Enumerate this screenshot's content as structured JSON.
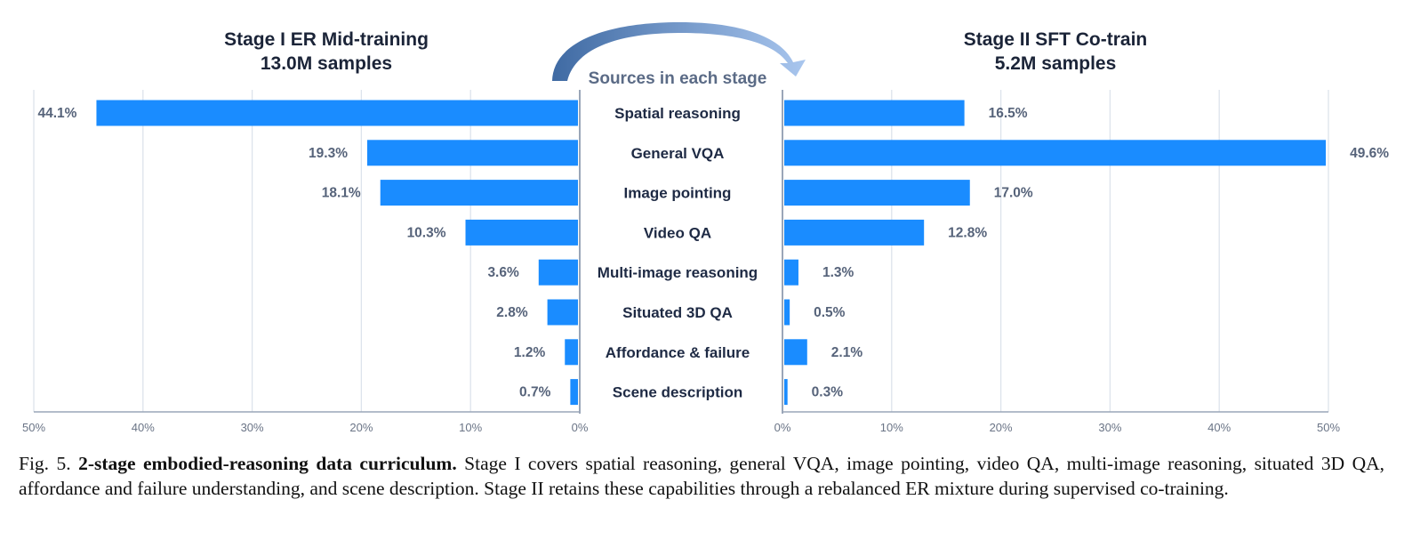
{
  "chart_data": {
    "type": "bar",
    "orientation": "horizontal",
    "center_header": "Sources in each stage",
    "categories": [
      "Spatial reasoning",
      "General VQA",
      "Image pointing",
      "Video QA",
      "Multi-image reasoning",
      "Situated 3D QA",
      "Affordance & failure",
      "Scene description"
    ],
    "panels": [
      {
        "title_line1": "Stage I ER Mid-training",
        "title_line2": "13.0M samples",
        "direction": "left",
        "xlim": [
          0,
          50
        ],
        "xticks": [
          "50%",
          "40%",
          "30%",
          "20%",
          "10%",
          "0%"
        ],
        "values": [
          44.1,
          19.3,
          18.1,
          10.3,
          3.6,
          2.8,
          1.2,
          0.7
        ],
        "labels": [
          "44.1%",
          "19.3%",
          "18.1%",
          "10.3%",
          "3.6%",
          "2.8%",
          "1.2%",
          "0.7%"
        ]
      },
      {
        "title_line1": "Stage II SFT Co-train",
        "title_line2": "5.2M samples",
        "direction": "right",
        "xlim": [
          0,
          50
        ],
        "xticks": [
          "0%",
          "10%",
          "20%",
          "30%",
          "40%",
          "50%"
        ],
        "values": [
          16.5,
          49.6,
          17.0,
          12.8,
          1.3,
          0.5,
          2.1,
          0.3
        ],
        "labels": [
          "16.5%",
          "49.6%",
          "17.0%",
          "12.8%",
          "1.3%",
          "0.5%",
          "2.1%",
          "0.3%"
        ]
      }
    ],
    "grid": true,
    "colors": {
      "bar": "#1a8cff",
      "grid": "#dde3ec",
      "axis": "#9aa6b8",
      "arrow": "#4f7bb5"
    }
  },
  "caption": {
    "prefix": "Fig. 5. ",
    "bold": "2-stage embodied-reasoning data curriculum.",
    "text": " Stage I covers spatial reasoning, general VQA, image pointing, video QA, multi-image reasoning, situated 3D QA, affordance and failure understanding, and scene description. Stage II retains these capabilities through a rebalanced ER mixture during supervised co-training."
  }
}
